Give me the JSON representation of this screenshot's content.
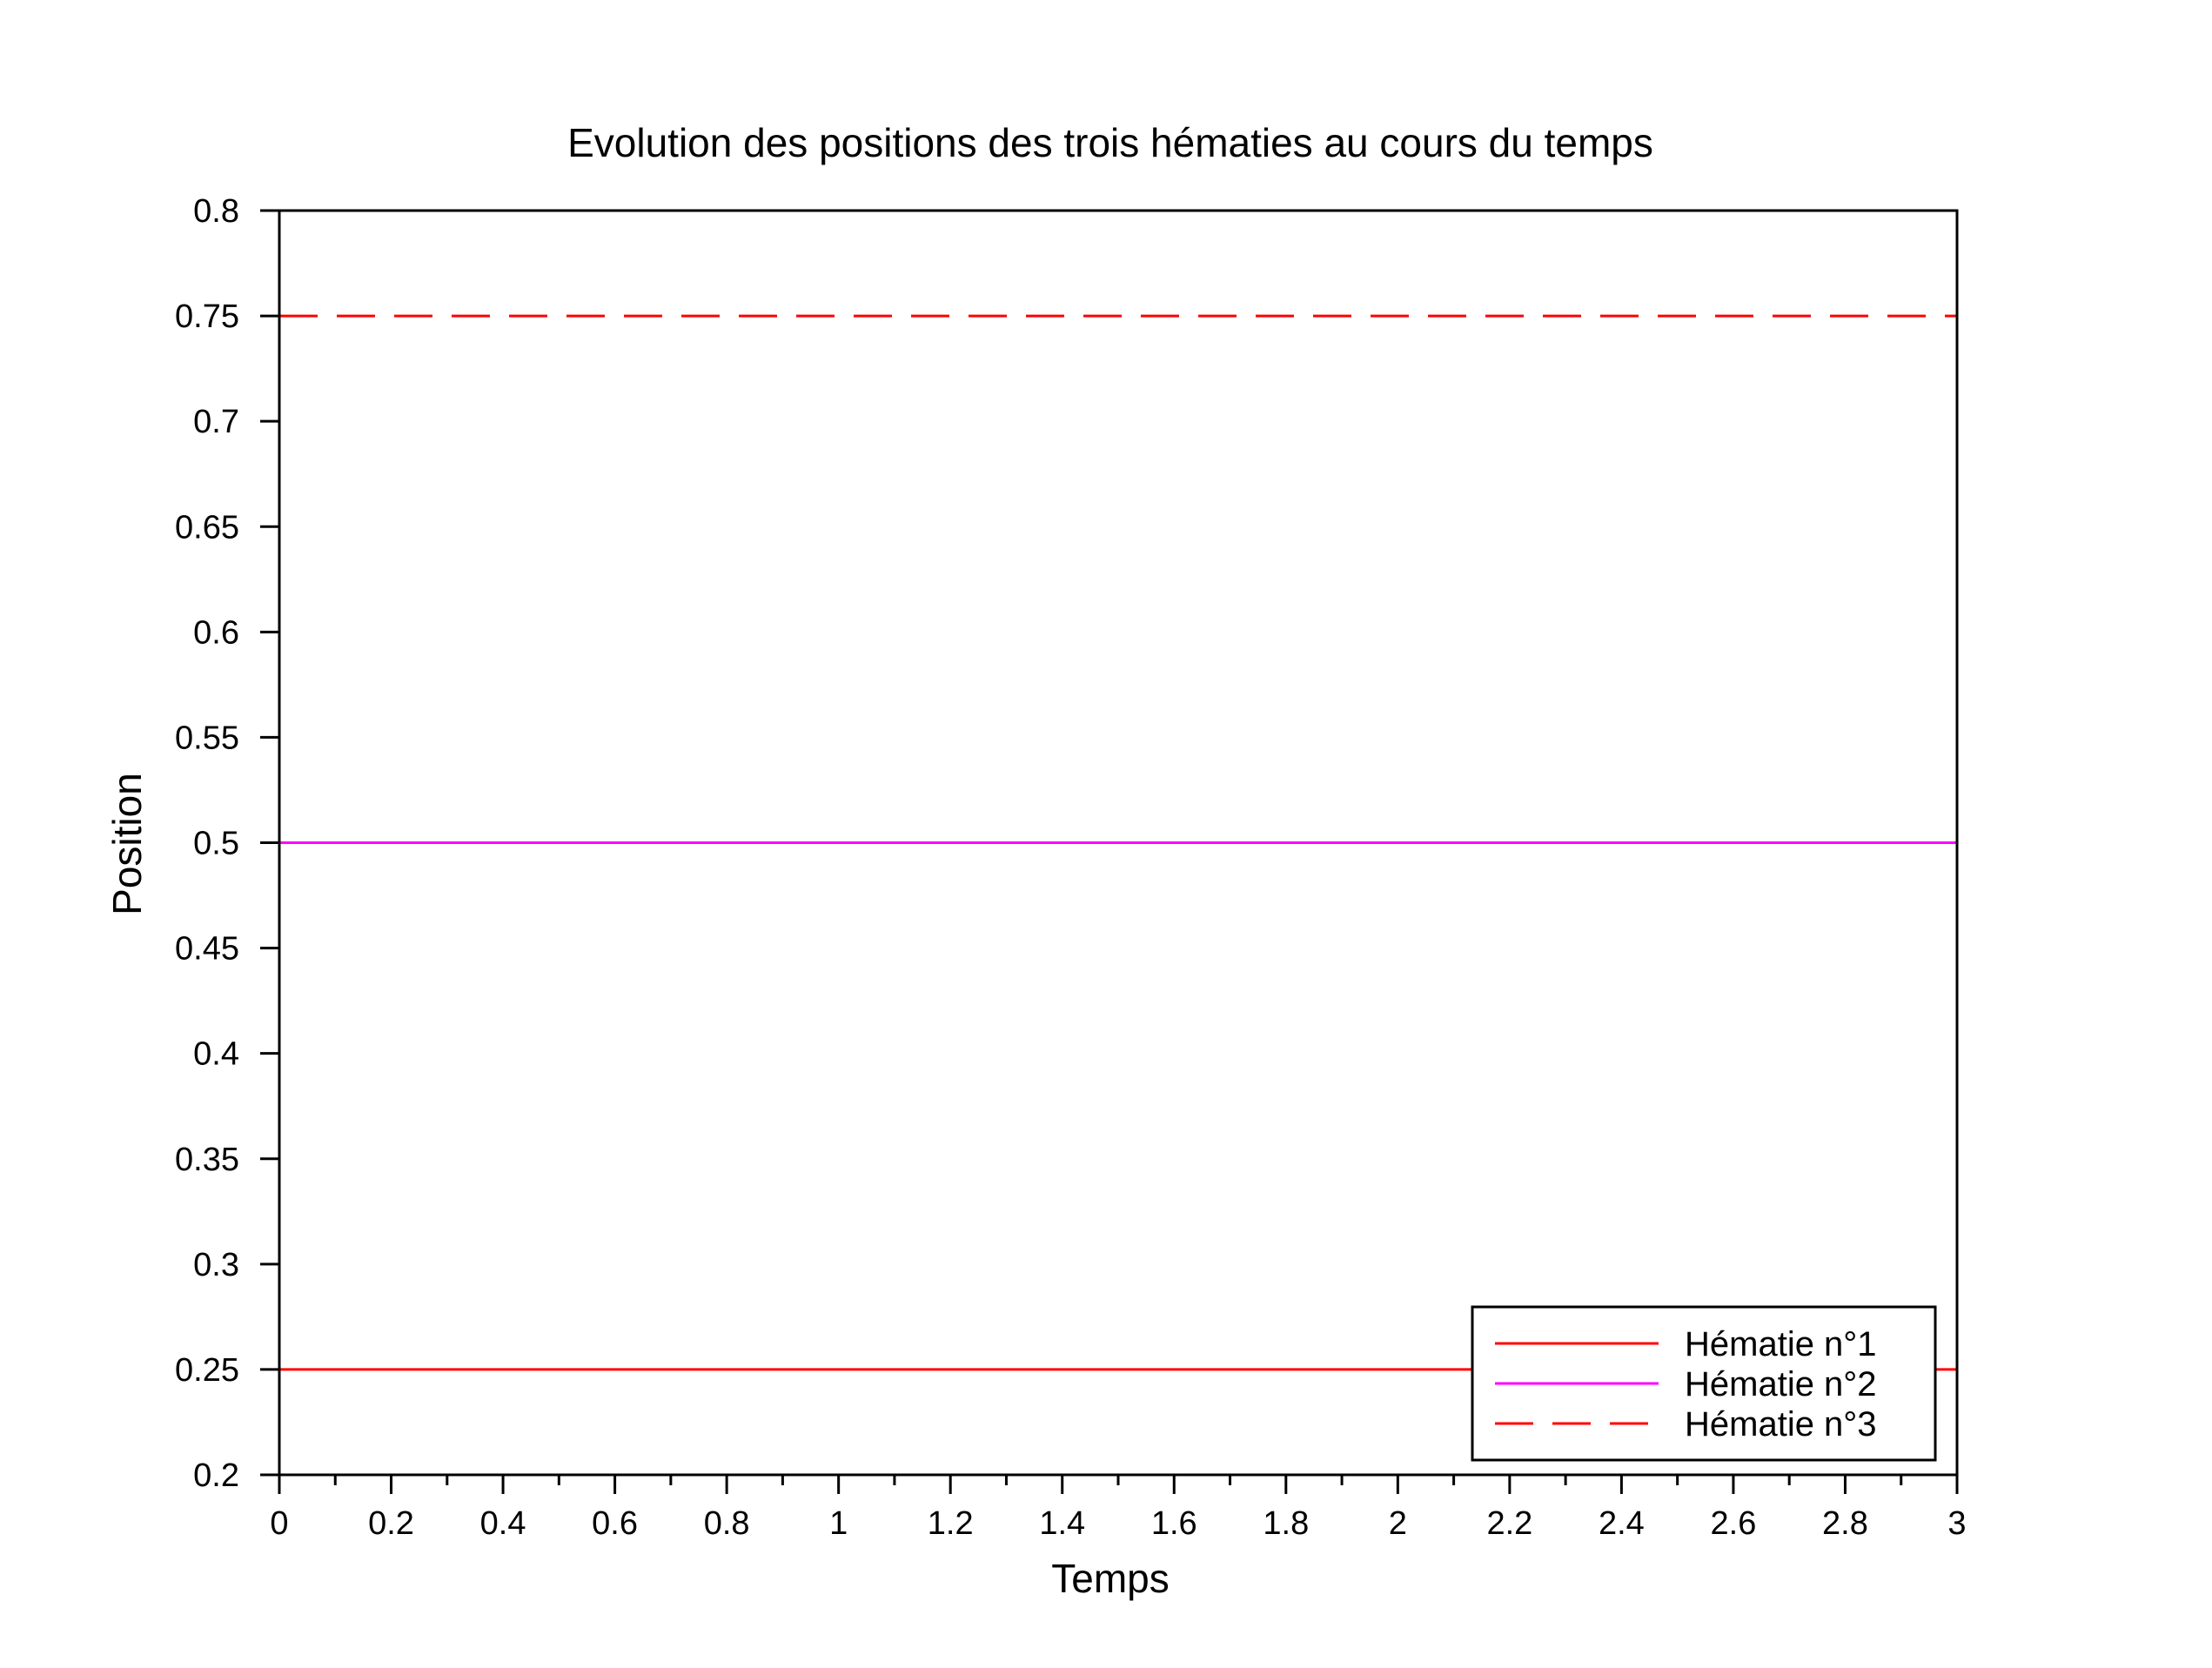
{
  "chart_data": {
    "type": "line",
    "title": "Evolution des positions des trois hématies au cours du temps",
    "xlabel": "Temps",
    "ylabel": "Position",
    "xlim": [
      0,
      3
    ],
    "ylim": [
      0.2,
      0.8
    ],
    "grid": false,
    "legend_position": "bottom-right",
    "x_ticks": [
      "0",
      "0.2",
      "0.4",
      "0.6",
      "0.8",
      "1",
      "1.2",
      "1.4",
      "1.6",
      "1.8",
      "2",
      "2.2",
      "2.4",
      "2.6",
      "2.8",
      "3"
    ],
    "y_ticks": [
      "0.2",
      "0.25",
      "0.3",
      "0.35",
      "0.4",
      "0.45",
      "0.5",
      "0.55",
      "0.6",
      "0.65",
      "0.7",
      "0.75",
      "0.8"
    ],
    "series": [
      {
        "name": "Hématie n°1",
        "color": "#ff0000",
        "style": "solid",
        "x": [
          0,
          3
        ],
        "y": [
          0.25,
          0.25
        ]
      },
      {
        "name": "Hématie n°2",
        "color": "#ff00ff",
        "style": "solid",
        "x": [
          0,
          3
        ],
        "y": [
          0.5,
          0.5
        ]
      },
      {
        "name": "Hématie n°3",
        "color": "#ff0000",
        "style": "dashed",
        "x": [
          0,
          3
        ],
        "y": [
          0.75,
          0.75
        ]
      }
    ]
  }
}
